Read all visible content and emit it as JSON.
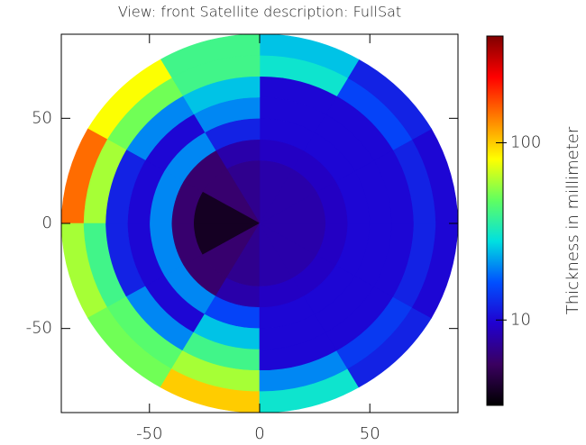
{
  "chart_data": {
    "type": "polar_heatmap",
    "title": "View: front    Satellite description: FullSat",
    "xlim": [
      -90,
      90
    ],
    "ylim": [
      -90,
      90
    ],
    "xticks": [
      -50,
      0,
      50
    ],
    "yticks": [
      -50,
      0,
      50
    ],
    "r_edges": [
      0,
      30,
      40,
      50,
      60,
      70,
      80,
      90
    ],
    "theta_edges": [
      0,
      30,
      60,
      90,
      120,
      150,
      180,
      210,
      240,
      270,
      300,
      330,
      360
    ],
    "values": [
      [
        8,
        8,
        8,
        7,
        6,
        4,
        4,
        6,
        7,
        8,
        8,
        8
      ],
      [
        9,
        9,
        9,
        8,
        6,
        6,
        6,
        6,
        8,
        9,
        9,
        9
      ],
      [
        10,
        10,
        10,
        12,
        20,
        20,
        20,
        20,
        15,
        10,
        10,
        10
      ],
      [
        10,
        10,
        10,
        20,
        10,
        10,
        10,
        10,
        25,
        10,
        10,
        10
      ],
      [
        10,
        10,
        10,
        25,
        20,
        12,
        12,
        20,
        40,
        10,
        10,
        10
      ],
      [
        12,
        15,
        30,
        40,
        50,
        60,
        40,
        45,
        60,
        20,
        14,
        12
      ],
      [
        10,
        12,
        25,
        40,
        80,
        150,
        60,
        50,
        100,
        30,
        12,
        10
      ]
    ],
    "zlim": [
      3.3,
      400
    ],
    "zscale": "log",
    "zticks": [
      10,
      100
    ],
    "colorbar_label": "Thickness in millimeter",
    "colormap": [
      "#000000",
      "#3a0060",
      "#2000d0",
      "#0050ff",
      "#00e0e0",
      "#60ff60",
      "#ffff00",
      "#ff8000",
      "#ff0000",
      "#800000"
    ]
  }
}
